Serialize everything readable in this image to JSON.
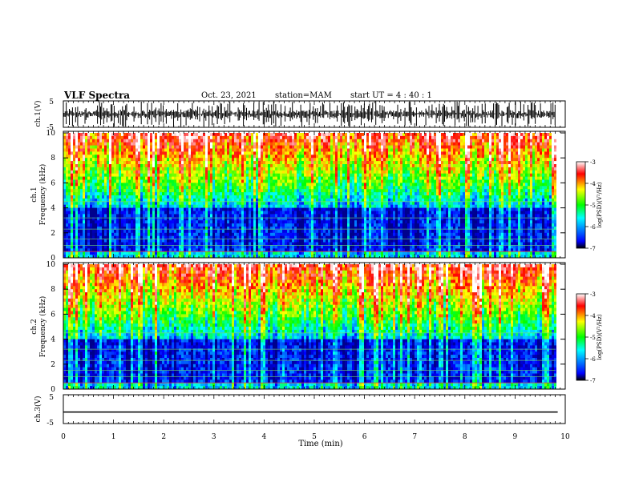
{
  "header": {
    "title": "VLF Spectra",
    "date": "Oct. 23, 2021",
    "station": "station=MAM",
    "start": "start  UT =   4 : 40 : 1"
  },
  "chart_data": [
    {
      "type": "line",
      "title": "",
      "ylabel": "ch.1(V)",
      "yticks": [
        "5",
        "-5"
      ],
      "ylim": [
        -5,
        5
      ],
      "xlim": [
        0,
        10
      ],
      "description_of_trace": "dense impulsive broadband spikes (sferics) over ~0 V baseline"
    },
    {
      "type": "heatmap",
      "ylabel": "ch.1\nFrequency (kHz)",
      "ylabel_line1": "ch.1",
      "ylabel_line2": "Frequency (kHz)",
      "ylim": [
        0,
        10
      ],
      "yticks": [
        "0",
        "2",
        "4",
        "6",
        "8",
        "10"
      ],
      "xlim": [
        0,
        10
      ],
      "colorbar": {
        "label": "log(PSD)(V²/Hz)",
        "ticks": [
          "-3",
          "-4",
          "-5",
          "-6",
          "-7"
        ],
        "range": [
          -7,
          -3
        ],
        "colors": [
          "#000000",
          "#0000ff",
          "#00ffff",
          "#00ff00",
          "#ffff00",
          "#ff0000",
          "#ffffff"
        ]
      }
    },
    {
      "type": "heatmap",
      "ylabel": "ch.2\nFrequency (kHz)",
      "ylabel_line1": "ch.2",
      "ylabel_line2": "Frequency (kHz)",
      "ylim": [
        0,
        10
      ],
      "yticks": [
        "0",
        "2",
        "4",
        "6",
        "8",
        "10"
      ],
      "xlim": [
        0,
        10
      ],
      "colorbar": {
        "label": "log(PSD)(V²/Hz)",
        "ticks": [
          "-3",
          "-4",
          "-5",
          "-6",
          "-7"
        ],
        "range": [
          -7,
          -3
        ]
      }
    },
    {
      "type": "line",
      "ylabel": "ch.3(V)",
      "yticks": [
        "5",
        "-5"
      ],
      "ylim": [
        -5,
        5
      ],
      "xlim": [
        0,
        10
      ],
      "y_constant": -1.3,
      "xlabel": "Time (min)",
      "xticks": [
        "0",
        "1",
        "2",
        "3",
        "4",
        "5",
        "6",
        "7",
        "8",
        "9",
        "10"
      ],
      "data_end_min": 9.85
    }
  ]
}
